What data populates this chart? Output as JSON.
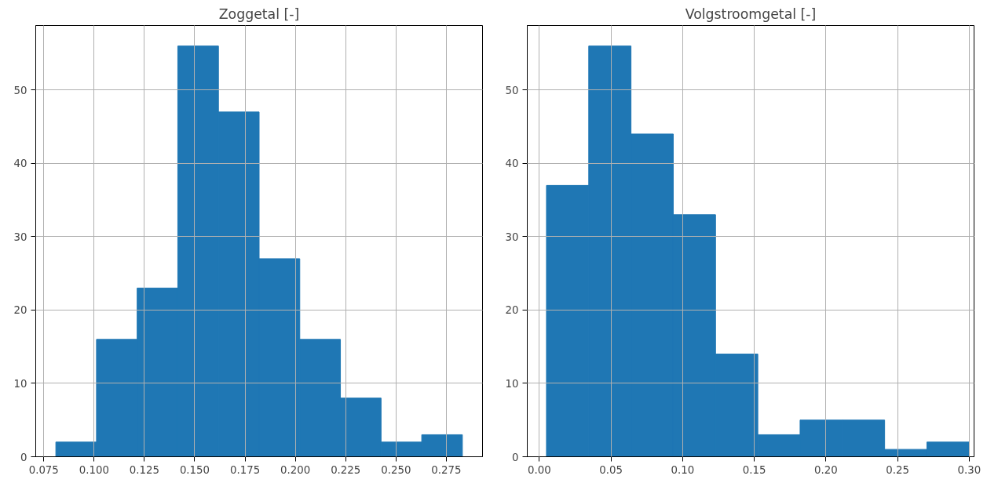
{
  "chart_data": [
    {
      "type": "histogram",
      "title": "Zoggetal [-]",
      "bins": [
        0.081,
        0.1012,
        0.1214,
        0.1416,
        0.1618,
        0.182,
        0.2022,
        0.2224,
        0.2426,
        0.2628,
        0.283
      ],
      "values": [
        2,
        16,
        23,
        56,
        47,
        27,
        16,
        8,
        2,
        3
      ],
      "color": "#1f77b4",
      "xlim": [
        0.071,
        0.293
      ],
      "ylim": [
        0,
        58.8
      ],
      "xticks": [
        {
          "value": 0.075,
          "label": "0.075"
        },
        {
          "value": 0.1,
          "label": "0.100"
        },
        {
          "value": 0.125,
          "label": "0.125"
        },
        {
          "value": 0.15,
          "label": "0.150"
        },
        {
          "value": 0.175,
          "label": "0.175"
        },
        {
          "value": 0.2,
          "label": "0.200"
        },
        {
          "value": 0.225,
          "label": "0.225"
        },
        {
          "value": 0.25,
          "label": "0.250"
        },
        {
          "value": 0.275,
          "label": "0.275"
        }
      ],
      "yticks": [
        0,
        10,
        20,
        30,
        40,
        50
      ],
      "grid": true
    },
    {
      "type": "histogram",
      "title": "Volgstroomgetal [-]",
      "bins": [
        0.005,
        0.0345,
        0.064,
        0.0935,
        0.123,
        0.1525,
        0.182,
        0.2115,
        0.241,
        0.2705,
        0.3
      ],
      "values": [
        37,
        56,
        44,
        33,
        14,
        3,
        5,
        5,
        1,
        2
      ],
      "color": "#1f77b4",
      "xlim": [
        -0.0084,
        0.3034
      ],
      "ylim": [
        0,
        58.8
      ],
      "xticks": [
        {
          "value": 0,
          "label": "0.00"
        },
        {
          "value": 0.05,
          "label": "0.05"
        },
        {
          "value": 0.1,
          "label": "0.10"
        },
        {
          "value": 0.15,
          "label": "0.15"
        },
        {
          "value": 0.2,
          "label": "0.20"
        },
        {
          "value": 0.25,
          "label": "0.25"
        },
        {
          "value": 0.3,
          "label": "0.30"
        }
      ],
      "yticks": [
        0,
        10,
        20,
        30,
        40,
        50
      ],
      "grid": true
    }
  ]
}
